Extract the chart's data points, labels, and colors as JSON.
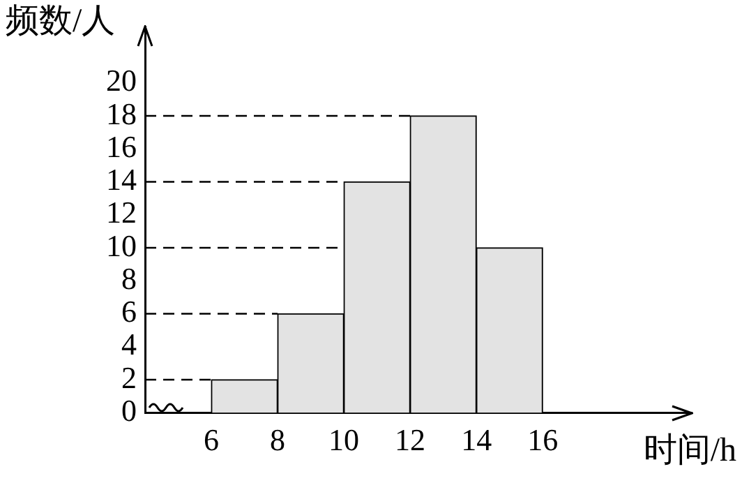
{
  "chart_data": {
    "type": "histogram",
    "xlabel": "时间/h",
    "ylabel": "频数/人",
    "bins": [
      6,
      8,
      10,
      12,
      14,
      16
    ],
    "values": [
      2,
      6,
      14,
      18,
      10
    ],
    "color": "#e3e3e3",
    "xlim": [
      4,
      20.5
    ],
    "xticks": [
      6,
      8,
      10,
      12,
      14,
      16
    ],
    "ylim": [
      0,
      23.4
    ],
    "yticks": [
      0,
      2,
      4,
      6,
      8,
      10,
      12,
      14,
      16,
      18,
      20
    ],
    "grid": false,
    "legend": false,
    "ref_lines": [
      {
        "axis": "y",
        "value": 2,
        "line_style": "dashed"
      },
      {
        "axis": "y",
        "value": 6,
        "line_style": "dashed"
      },
      {
        "axis": "y",
        "value": 10,
        "line_style": "dashed"
      },
      {
        "axis": "y",
        "value": 14,
        "line_style": "dashed"
      },
      {
        "axis": "y",
        "value": 18,
        "line_style": "dashed"
      }
    ]
  }
}
